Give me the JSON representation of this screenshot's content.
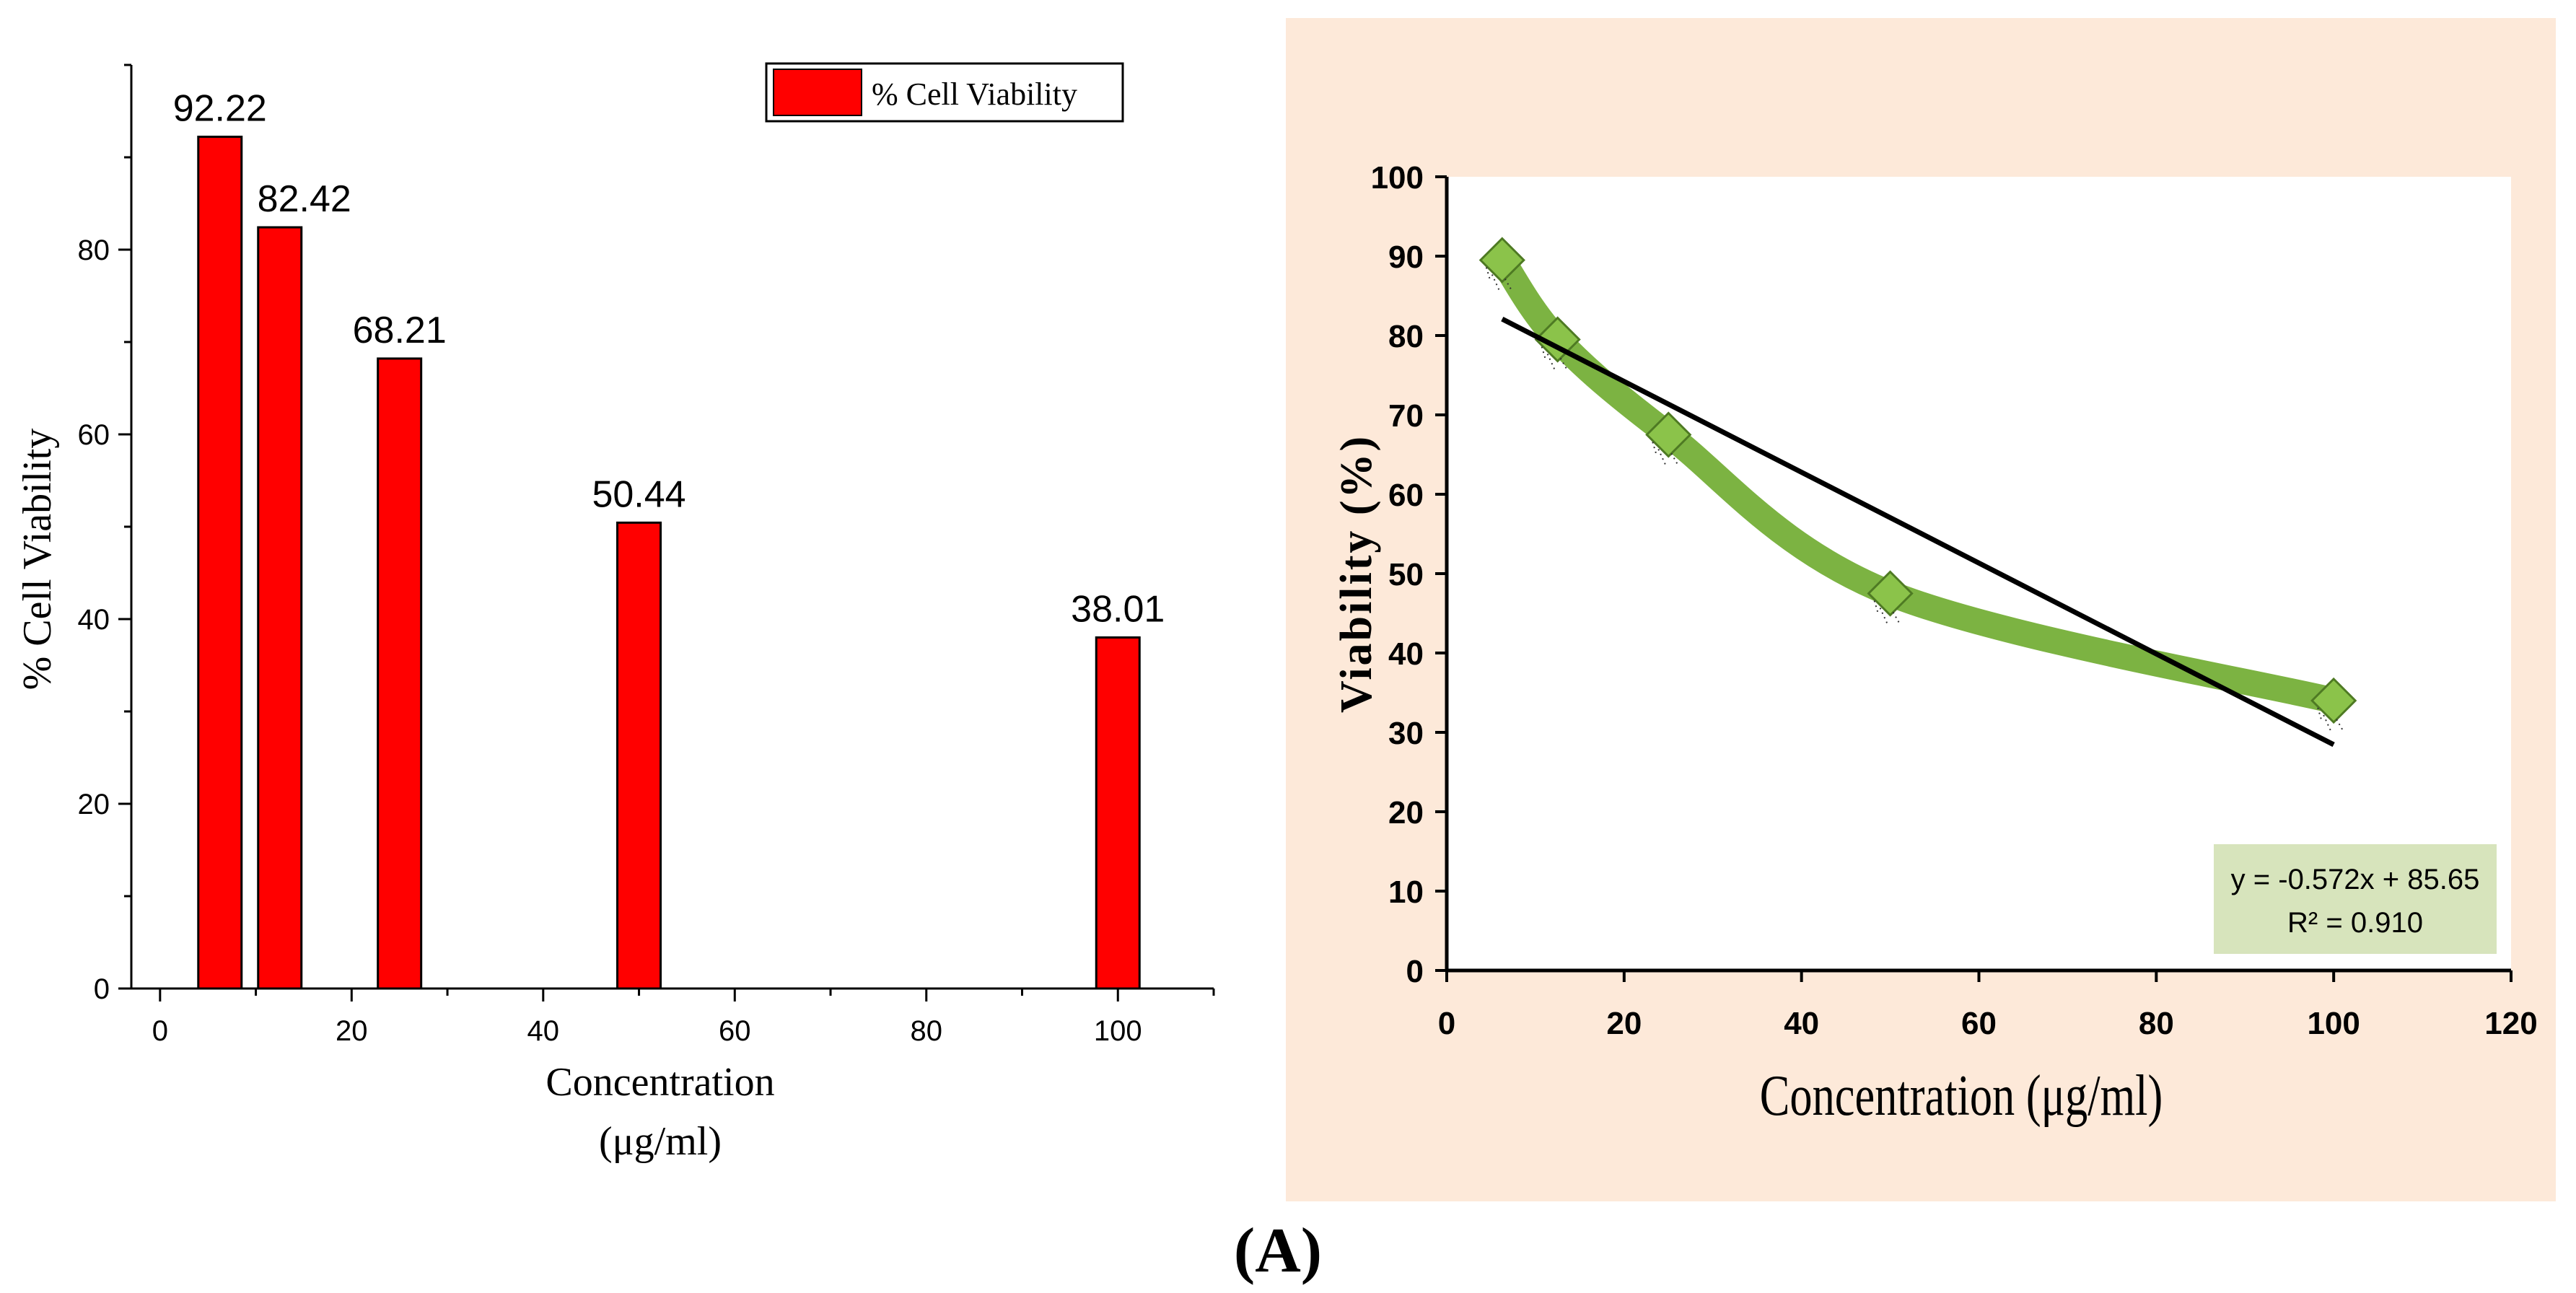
{
  "figure_label": "(A)",
  "chart_data": [
    {
      "type": "bar",
      "title": "",
      "xlabel": "Concentration",
      "xlabel_units": "(μg/ml)",
      "ylabel": "% Cell Viability",
      "legend": "% Cell Viability",
      "legend_position": "top-right",
      "x": [
        6.25,
        12.5,
        25,
        50,
        100
      ],
      "values": [
        92.22,
        82.42,
        68.21,
        50.44,
        38.01
      ],
      "data_labels": [
        "92.22",
        "82.42",
        "68.21",
        "50.44",
        "38.01"
      ],
      "xlim": [
        -3,
        110
      ],
      "ylim": [
        0,
        100
      ],
      "x_ticks": [
        "0",
        "20",
        "40",
        "60",
        "80",
        "100"
      ],
      "y_ticks": [
        "0",
        "20",
        "40",
        "60",
        "80"
      ],
      "bar_color": "#ff0000"
    },
    {
      "type": "line",
      "title": "",
      "xlabel": "Concentration (μg/ml)",
      "ylabel": "Viability (%)",
      "x": [
        6.25,
        12.5,
        25,
        50,
        100
      ],
      "y": [
        89.5,
        79.5,
        67.5,
        47.5,
        34
      ],
      "trendline": {
        "slope": -0.572,
        "intercept": 85.65,
        "x_range": [
          6.25,
          100
        ]
      },
      "equation": "y = -0.572x + 85.65",
      "r_squared": "R² = 0.910",
      "xlim": [
        0,
        120
      ],
      "ylim": [
        0,
        100
      ],
      "x_ticks": [
        "0",
        "20",
        "40",
        "60",
        "80",
        "100",
        "120"
      ],
      "y_ticks": [
        "0",
        "10",
        "20",
        "30",
        "40",
        "50",
        "60",
        "70",
        "80",
        "90",
        "100"
      ],
      "panel_bg": "#fde9d9",
      "line_color": "#7cb342",
      "marker_color": "#8bc34a",
      "trend_color": "#000000",
      "equation_bg": "#d7e4bc"
    }
  ]
}
